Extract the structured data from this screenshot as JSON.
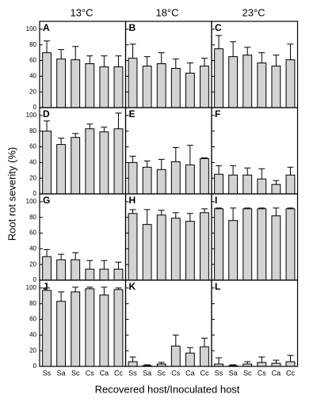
{
  "column_titles": [
    "13°C",
    "18°C",
    "23°C"
  ],
  "y_label": "Root rot severity (%)",
  "x_label": "Recovered host/Inoculated host",
  "chart_data": [
    {
      "type": "bar",
      "panel_label": "A",
      "values": [
        70,
        62,
        61,
        56,
        52,
        52
      ],
      "errors": [
        15,
        12,
        17,
        10,
        14,
        14
      ],
      "ylim": [
        0,
        110
      ],
      "yticks": [
        0,
        20,
        40,
        60,
        80,
        100
      ],
      "color": "#d3d3d3"
    },
    {
      "type": "bar",
      "panel_label": "B",
      "values": [
        63,
        53,
        56,
        50,
        44,
        53
      ],
      "errors": [
        18,
        12,
        14,
        12,
        13,
        10
      ],
      "ylim": [
        0,
        110
      ],
      "yticks": [
        0,
        20,
        40,
        60,
        80,
        100
      ],
      "color": "#d3d3d3"
    },
    {
      "type": "bar",
      "panel_label": "C",
      "values": [
        75,
        65,
        67,
        57,
        53,
        61
      ],
      "errors": [
        17,
        19,
        10,
        13,
        14,
        20
      ],
      "ylim": [
        0,
        110
      ],
      "yticks": [
        0,
        20,
        40,
        60,
        80,
        100
      ],
      "color": "#d3d3d3"
    },
    {
      "type": "bar",
      "panel_label": "D",
      "values": [
        80,
        63,
        72,
        83,
        79,
        83
      ],
      "errors": [
        13,
        8,
        5,
        6,
        6,
        20
      ],
      "ylim": [
        0,
        110
      ],
      "yticks": [
        0,
        20,
        40,
        60,
        80,
        100
      ],
      "color": "#d3d3d3"
    },
    {
      "type": "bar",
      "panel_label": "E",
      "values": [
        40,
        34,
        31,
        41,
        37,
        45
      ],
      "errors": [
        8,
        8,
        13,
        18,
        25,
        1
      ],
      "ylim": [
        0,
        110
      ],
      "yticks": [
        0,
        20,
        40,
        60,
        80,
        100
      ],
      "color": "#d3d3d3"
    },
    {
      "type": "bar",
      "panel_label": "F",
      "values": [
        25,
        24,
        24,
        19,
        12,
        24
      ],
      "errors": [
        11,
        12,
        9,
        13,
        5,
        10
      ],
      "ylim": [
        0,
        110
      ],
      "yticks": [
        0,
        20,
        40,
        60,
        80,
        100
      ],
      "color": "#d3d3d3"
    },
    {
      "type": "bar",
      "panel_label": "G",
      "values": [
        30,
        26,
        26,
        14,
        14,
        14
      ],
      "errors": [
        9,
        7,
        9,
        11,
        11,
        9
      ],
      "ylim": [
        0,
        110
      ],
      "yticks": [
        0,
        20,
        40,
        60,
        80,
        100
      ],
      "color": "#d3d3d3"
    },
    {
      "type": "bar",
      "panel_label": "H",
      "values": [
        85,
        71,
        83,
        79,
        75,
        86
      ],
      "errors": [
        5,
        19,
        6,
        7,
        10,
        5
      ],
      "ylim": [
        0,
        110
      ],
      "yticks": [
        0,
        20,
        40,
        60,
        80,
        100
      ],
      "color": "#d3d3d3"
    },
    {
      "type": "bar",
      "panel_label": "I",
      "values": [
        91,
        76,
        91,
        91,
        82,
        91
      ],
      "errors": [
        1,
        16,
        1,
        1,
        10,
        1
      ],
      "ylim": [
        0,
        110
      ],
      "yticks": [
        0,
        20,
        40,
        60,
        80,
        100
      ],
      "color": "#d3d3d3"
    },
    {
      "type": "bar",
      "panel_label": "J",
      "categories": [
        "Ss",
        "Sa",
        "Sc",
        "Cs",
        "Ca",
        "Cc"
      ],
      "values": [
        97,
        83,
        95,
        99,
        91,
        98
      ],
      "errors": [
        3,
        12,
        6,
        2,
        10,
        2
      ],
      "ylim": [
        0,
        110
      ],
      "yticks": [
        0,
        20,
        40,
        60,
        80,
        100
      ],
      "color": "#d3d3d3"
    },
    {
      "type": "bar",
      "panel_label": "K",
      "categories": [
        "Ss",
        "Sa",
        "Sc",
        "Cs",
        "Ca",
        "Cc"
      ],
      "values": [
        6,
        1,
        3,
        26,
        17,
        25
      ],
      "errors": [
        6,
        1,
        2,
        14,
        7,
        11
      ],
      "ylim": [
        0,
        110
      ],
      "yticks": [
        0,
        20,
        40,
        60,
        80,
        100
      ],
      "color": "#d3d3d3"
    },
    {
      "type": "bar",
      "panel_label": "L",
      "categories": [
        "Ss",
        "Sa",
        "Sc",
        "Cs",
        "Ca",
        "Cc"
      ],
      "values": [
        3,
        1,
        3,
        5,
        4,
        6
      ],
      "errors": [
        8,
        1,
        3,
        7,
        4,
        8
      ],
      "ylim": [
        0,
        110
      ],
      "yticks": [
        0,
        20,
        40,
        60,
        80,
        100
      ],
      "color": "#d3d3d3"
    }
  ]
}
